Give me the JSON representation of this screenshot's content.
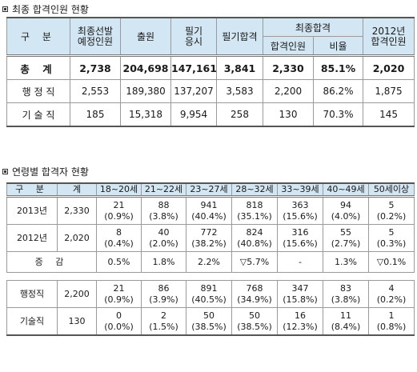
{
  "section1": {
    "title": "최종 합격인원 현황",
    "headers": {
      "category": "구  분",
      "designated": "최종선발\n예정인원",
      "applicants": "출원",
      "written_takers": "필기\n응시",
      "written_pass": "필기합격",
      "final_pass": "최종합격",
      "final_count": "합격인원",
      "final_ratio": "비율",
      "year2012": "2012년\n합격인원"
    },
    "rows": [
      {
        "label": "총  계",
        "values": [
          "2,738",
          "204,698",
          "147,161",
          "3,841",
          "2,330",
          "85.1%",
          "2,020"
        ]
      },
      {
        "label": "행 정 직",
        "values": [
          "2,553",
          "189,380",
          "137,207",
          "3,583",
          "2,200",
          "86.2%",
          "1,875"
        ]
      },
      {
        "label": "기 술 직",
        "values": [
          "185",
          "15,318",
          "9,954",
          "258",
          "130",
          "70.3%",
          "145"
        ]
      }
    ]
  },
  "section2": {
    "title": "연령별 합격자 현황",
    "headers": [
      "구  분",
      "계",
      "18~20세",
      "21~22세",
      "23~27세",
      "28~32세",
      "33~39세",
      "40~49세",
      "50세이상"
    ],
    "rows": [
      {
        "label": "2013년",
        "total": "2,330",
        "cells": [
          [
            "21",
            "(0.9%)"
          ],
          [
            "88",
            "(3.8%)"
          ],
          [
            "941",
            "(40.4%)"
          ],
          [
            "818",
            "(35.1%)"
          ],
          [
            "363",
            "(15.6%)"
          ],
          [
            "94",
            "(4.0%)"
          ],
          [
            "5",
            "(0.2%)"
          ]
        ]
      },
      {
        "label": "2012년",
        "total": "2,020",
        "cells": [
          [
            "8",
            "(0.4%)"
          ],
          [
            "40",
            "(2.0%)"
          ],
          [
            "772",
            "(38.2%)"
          ],
          [
            "824",
            "(40.8%)"
          ],
          [
            "316",
            "(15.6%)"
          ],
          [
            "55",
            "(2.7%)"
          ],
          [
            "5",
            "(0.3%)"
          ]
        ]
      },
      {
        "label": "증  감",
        "cells": [
          "0.5%",
          "1.8%",
          "2.2%",
          "▽5.7%",
          "-",
          "1.3%",
          "▽0.1%"
        ]
      },
      {
        "label": "행정직",
        "total": "2,200",
        "cells": [
          [
            "21",
            "(0.9%)"
          ],
          [
            "86",
            "(3.9%)"
          ],
          [
            "891",
            "(40.5%)"
          ],
          [
            "768",
            "(34.9%)"
          ],
          [
            "347",
            "(15.8%)"
          ],
          [
            "83",
            "(3.8%)"
          ],
          [
            "4",
            "(0.2%)"
          ]
        ]
      },
      {
        "label": "기술직",
        "total": "130",
        "cells": [
          [
            "0",
            "(0.0%)"
          ],
          [
            "2",
            "(1.5%)"
          ],
          [
            "50",
            "(38.5%)"
          ],
          [
            "50",
            "(38.5%)"
          ],
          [
            "16",
            "(12.3%)"
          ],
          [
            "11",
            "(8.4%)"
          ],
          [
            "1",
            "(0.8%)"
          ]
        ]
      }
    ]
  }
}
